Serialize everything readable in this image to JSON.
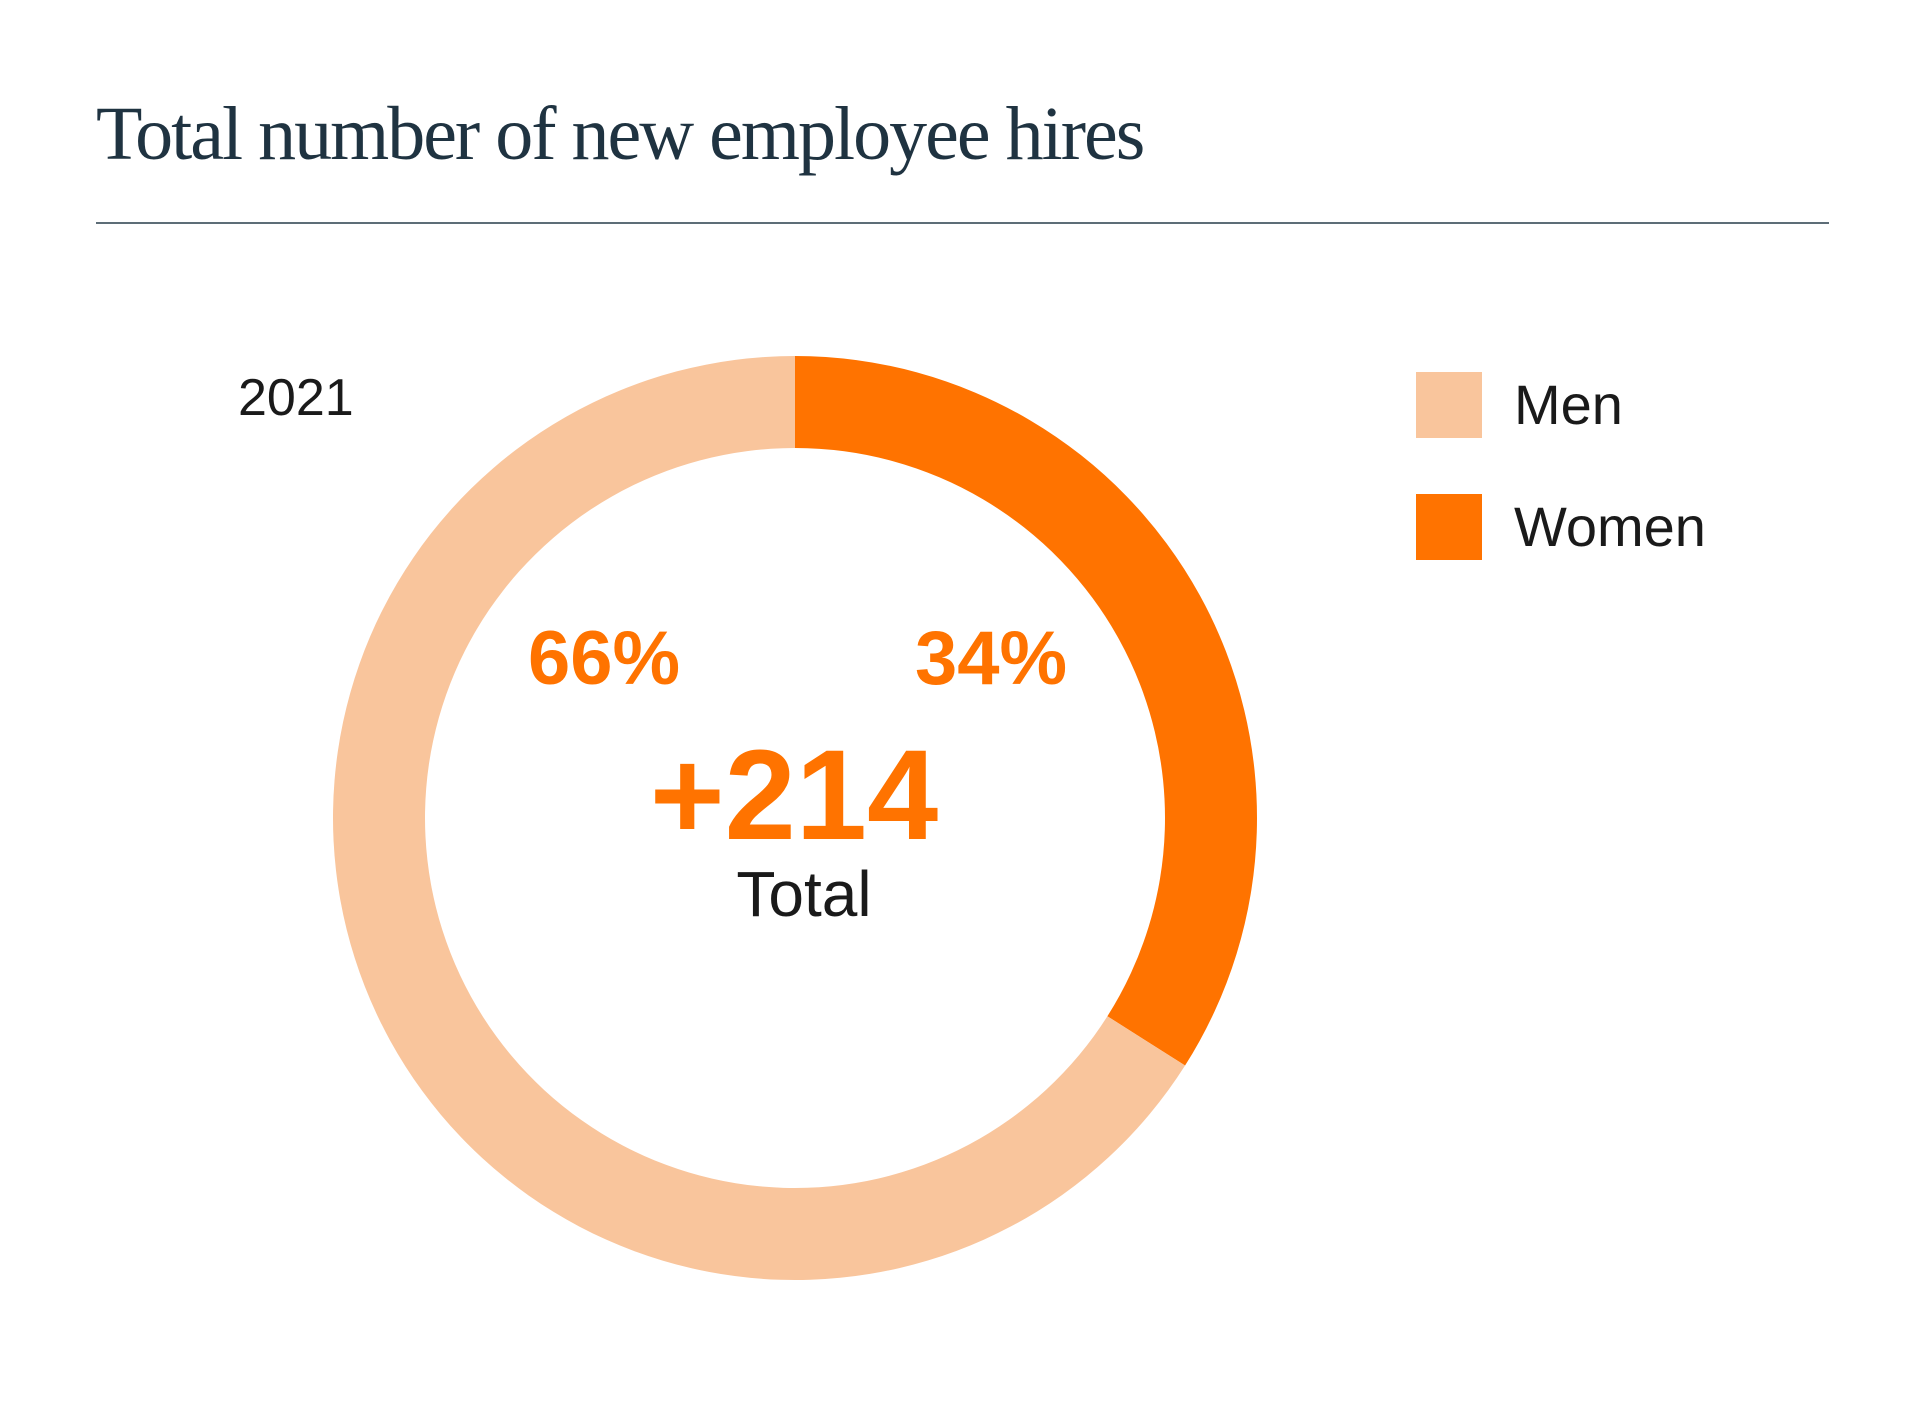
{
  "title": "Total number of new employee hires",
  "colors": {
    "men": "#f9c59c",
    "women": "#ff7300",
    "title": "#1f3341",
    "text": "#1a1a1a"
  },
  "chart_data": {
    "type": "pie",
    "subtype": "donut",
    "title": "Total number of new employee hires",
    "year_label": "2021",
    "center": {
      "value_label": "+214",
      "caption": "Total"
    },
    "slices": [
      {
        "name": "Women",
        "value": 34,
        "label": "34%",
        "color": "#ff7300"
      },
      {
        "name": "Men",
        "value": 66,
        "label": "66%",
        "color": "#f9c59c"
      }
    ],
    "legend": {
      "placement": "right",
      "entries": [
        {
          "name": "Men",
          "color": "#f9c59c"
        },
        {
          "name": "Women",
          "color": "#ff7300"
        }
      ]
    },
    "label_color": "#ff7300"
  }
}
